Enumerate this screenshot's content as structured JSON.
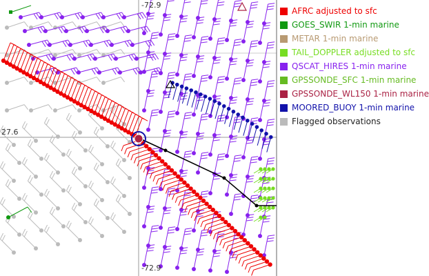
{
  "map": {
    "lat_label": "27.6",
    "lon_label_top": "-72.9",
    "lon_label_bottom": "-72.9"
  },
  "legend": {
    "items": [
      {
        "label": "AFRC adjusted to sfc",
        "color": "#ee0000",
        "icon": "red-square-icon"
      },
      {
        "label": "GOES_SWIR 1-min marine",
        "color": "#119911",
        "icon": "green-square-icon"
      },
      {
        "label": "METAR 1-min marine",
        "color": "#b89a72",
        "icon": "tan-square-icon"
      },
      {
        "label": "TAIL_DOPPLER adjusted to sfc",
        "color": "#77dd22",
        "icon": "lime-square-icon"
      },
      {
        "label": "QSCAT_HIRES 1-min marine",
        "color": "#8822ee",
        "icon": "purple-square-icon"
      },
      {
        "label": "GPSSONDE_SFC 1-min marine",
        "color": "#66bb22",
        "icon": "olive-green-square-icon"
      },
      {
        "label": "GPSSONDE_WL150 1-min marine",
        "color": "#aa2244",
        "icon": "maroon-square-icon"
      },
      {
        "label": "MOORED_BUOY 1-min marine",
        "color": "#1111aa",
        "icon": "navy-square-icon"
      },
      {
        "label": "Flagged observations",
        "color": "#bbbbbb",
        "icon": "gray-square-icon"
      }
    ]
  }
}
